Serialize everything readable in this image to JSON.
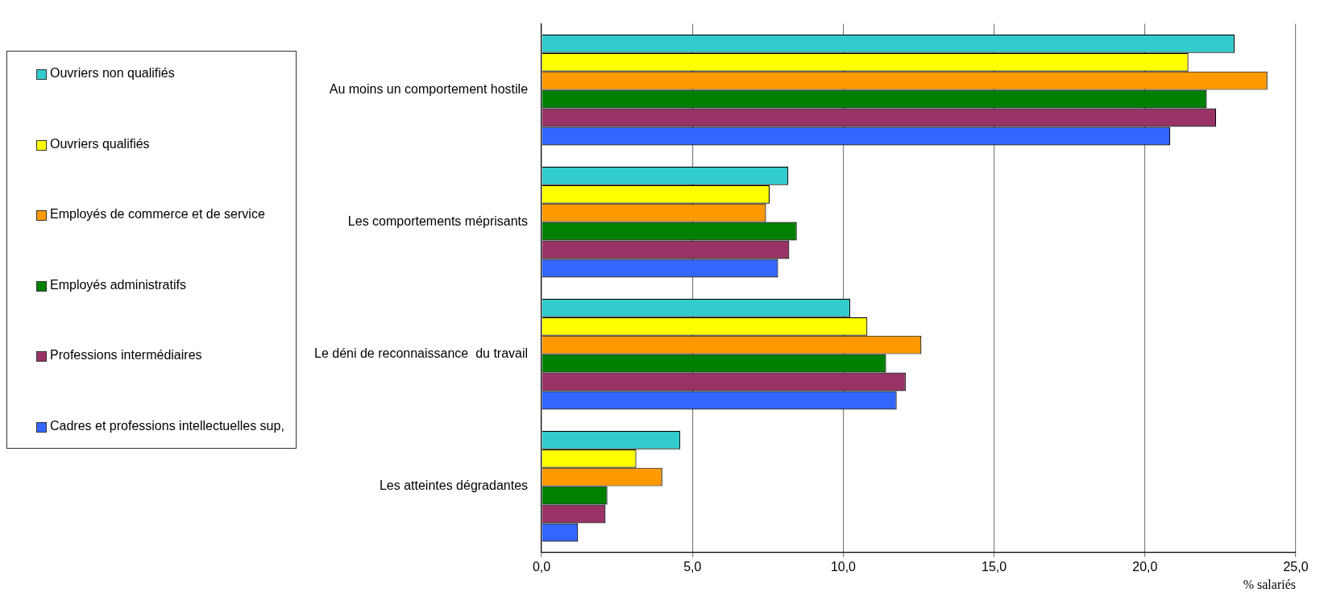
{
  "chart_data": {
    "type": "bar",
    "orientation": "horizontal",
    "xlabel": "% salariés",
    "categories": [
      "Au moins un comportement hostile",
      "Les comportements méprisants",
      "Le déni de reconnaissance  du travail",
      "Les atteintes dégradantes"
    ],
    "series": [
      {
        "name": "Ouvriers non qualifiés",
        "color": "#33cccc",
        "values": [
          22.97,
          8.18,
          10.23,
          4.6
        ]
      },
      {
        "name": "Ouvriers qualifiés",
        "color": "#ffff00",
        "values": [
          21.44,
          7.56,
          10.8,
          3.14
        ]
      },
      {
        "name": "Employés de commerce et de service",
        "color": "#ff9900",
        "values": [
          24.06,
          7.44,
          12.59,
          4.0
        ]
      },
      {
        "name": "Employés administratifs",
        "color": "#008000",
        "values": [
          22.05,
          8.46,
          11.42,
          2.18
        ]
      },
      {
        "name": "Professions intermédiaires",
        "color": "#993366",
        "values": [
          22.36,
          8.21,
          12.07,
          2.12
        ]
      },
      {
        "name": "Cadres et professions intellectuelles sup,",
        "color": "#3366ff",
        "values": [
          20.84,
          7.84,
          11.77,
          1.21
        ]
      }
    ],
    "xlim": [
      0,
      25
    ],
    "xticks": [
      {
        "value": 0,
        "label": "0,0"
      },
      {
        "value": 5,
        "label": "5,0"
      },
      {
        "value": 10,
        "label": "10,0"
      },
      {
        "value": 15,
        "label": "15,0"
      },
      {
        "value": 20,
        "label": "20,0"
      },
      {
        "value": 25,
        "label": "25,0"
      }
    ],
    "grid": "x",
    "legend": "left"
  }
}
